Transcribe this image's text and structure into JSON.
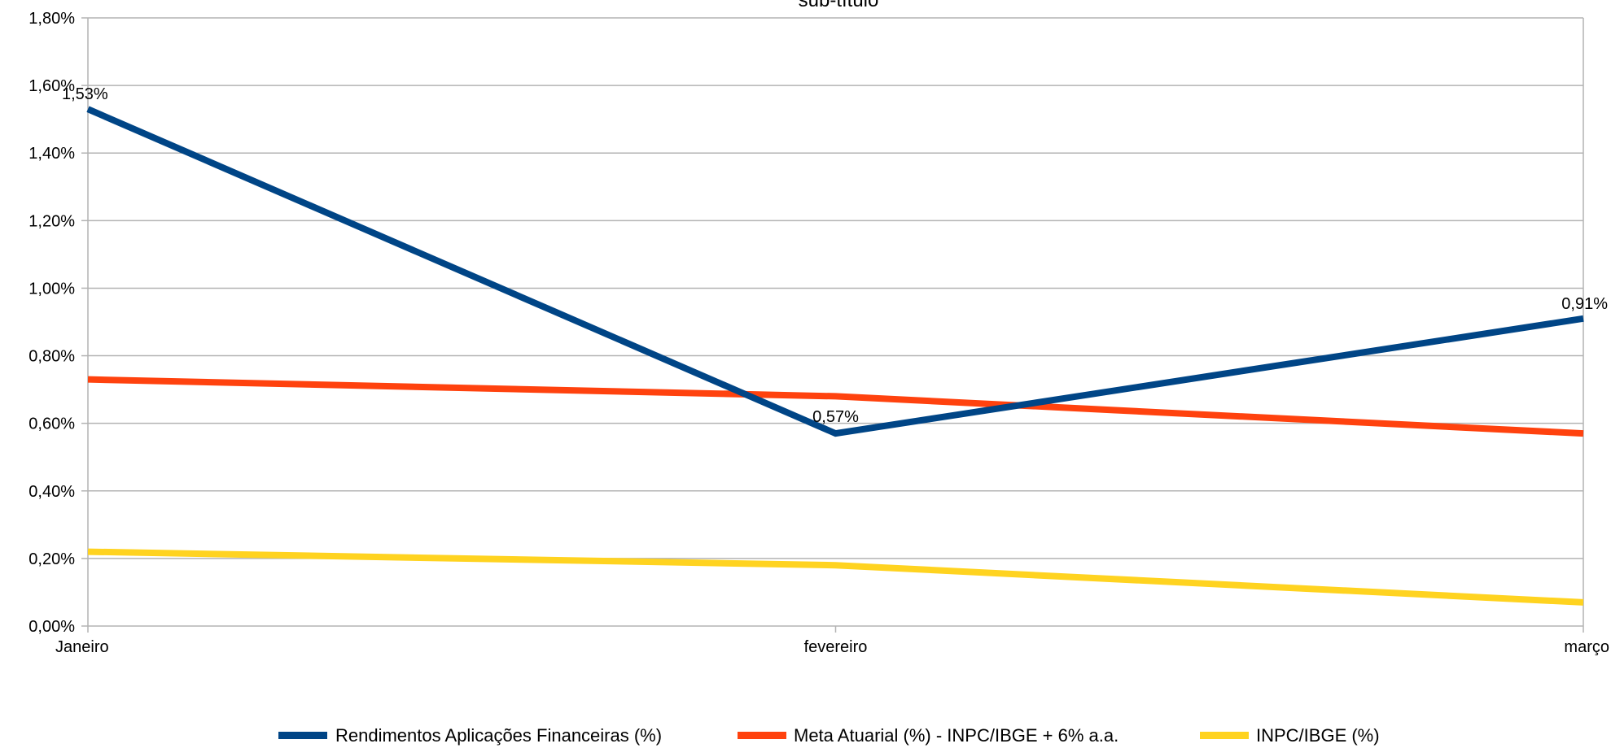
{
  "chart_data": {
    "type": "line",
    "subtitle": "sub-título",
    "categories": [
      "Janeiro",
      "fevereiro",
      "março"
    ],
    "y_ticks": [
      "0,00%",
      "0,20%",
      "0,40%",
      "0,60%",
      "0,80%",
      "1,00%",
      "1,20%",
      "1,40%",
      "1,60%",
      "1,80%"
    ],
    "ylim": [
      0,
      1.8
    ],
    "grid": true,
    "legend_position": "bottom",
    "series": [
      {
        "name": "Rendimentos Aplicações Financeiras (%)",
        "values": [
          1.53,
          0.57,
          0.91
        ],
        "data_labels": [
          "1,53%",
          "0,57%",
          "0,91%"
        ],
        "color": "#004586"
      },
      {
        "name": "Meta Atuarial (%) - INPC/IBGE + 6% a.a.",
        "values": [
          0.73,
          0.68,
          0.57
        ],
        "data_labels": [
          "",
          "",
          ""
        ],
        "color": "#ff420e"
      },
      {
        "name": "INPC/IBGE (%)",
        "values": [
          0.22,
          0.18,
          0.07
        ],
        "data_labels": [
          "",
          "",
          ""
        ],
        "color": "#ffd320"
      }
    ]
  }
}
